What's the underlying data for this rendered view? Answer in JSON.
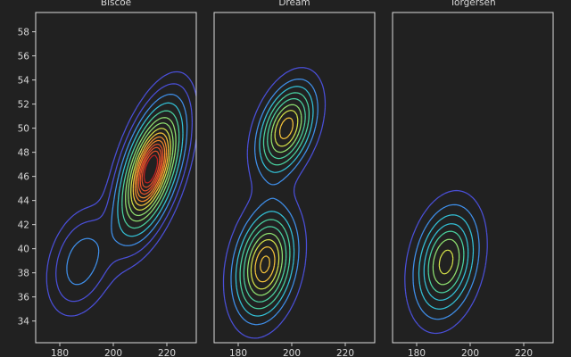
{
  "chart_data": {
    "type": "contour",
    "x_axis": {
      "ticks": [
        180,
        200,
        220
      ],
      "range": [
        171,
        231
      ]
    },
    "y_axis": {
      "ticks": [
        34,
        36,
        38,
        40,
        42,
        44,
        46,
        48,
        50,
        52,
        54,
        56,
        58
      ],
      "range": [
        32.2,
        59.6
      ]
    },
    "grid": false,
    "colormap": [
      "#3d34a0",
      "#4a4fd8",
      "#3f8fea",
      "#33c0d6",
      "#4ad2a0",
      "#8fe070",
      "#d3e048",
      "#f4c23a",
      "#f38a2c",
      "#e3502a",
      "#c22021"
    ],
    "panels": [
      {
        "title": "Biscoe",
        "levels": [
          0.05,
          0.1,
          0.17,
          0.25,
          0.34,
          0.43,
          0.51,
          0.59,
          0.66,
          0.72,
          0.77,
          0.82,
          0.86,
          0.9,
          0.94
        ],
        "components": [
          {
            "weight": 1.0,
            "mean": [
              214,
              46.6
            ],
            "sd": [
              7.2,
              3.3
            ],
            "rho": 0.55
          },
          {
            "weight": 0.22,
            "mean": [
              188,
              38.9
            ],
            "sd": [
              7.5,
              2.6
            ],
            "rho": 0.3
          }
        ]
      },
      {
        "title": "Dream",
        "levels": [
          0.09,
          0.18,
          0.26,
          0.34,
          0.42,
          0.5,
          0.57,
          0.64,
          0.7
        ],
        "components": [
          {
            "weight": 0.68,
            "mean": [
              198,
              50.0
            ],
            "sd": [
              7.2,
              2.5
            ],
            "rho": 0.4
          },
          {
            "weight": 0.72,
            "mean": [
              190,
              38.7
            ],
            "sd": [
              7.6,
              3.0
            ],
            "rho": 0.25
          }
        ]
      },
      {
        "title": "Torgersen",
        "levels": [
          0.08,
          0.16,
          0.24,
          0.32,
          0.39,
          0.46,
          0.53
        ],
        "components": [
          {
            "weight": 0.56,
            "mean": [
              191,
              38.9
            ],
            "sd": [
              7.8,
              3.0
            ],
            "rho": 0.25
          }
        ]
      }
    ]
  }
}
